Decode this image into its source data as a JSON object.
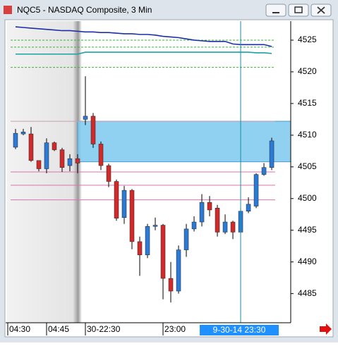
{
  "chart_data": {
    "type": "candlestick",
    "title": "NQC5 - NASDAQ Composite, 3 Min",
    "open": [
      4508.1,
      4510.2,
      4510.2,
      4506,
      4504.7,
      4508.8,
      4507.7,
      4505.2,
      4506.3,
      4512.5,
      4513,
      4508.6,
      4505.2,
      4502.7,
      4497,
      4501.3,
      4493.2,
      4491.1,
      4495.6,
      4495.8,
      4487.4,
      4485.4,
      4491.9,
      4495.2,
      4496.3,
      4499.4,
      4498.5,
      4494.7,
      4496.3,
      4494.7,
      4498.0,
      4498.8,
      4503.8,
      4504.9
    ],
    "high": [
      4511,
      4511,
      4511.3,
      4506,
      4509.5,
      4509,
      4508,
      4507,
      4507,
      4519.3,
      4513.5,
      4509,
      4505.5,
      4503,
      4502,
      4501.5,
      4494,
      4496,
      4497,
      4496,
      4490,
      4492.6,
      4496,
      4497.2,
      4500.7,
      4500.4,
      4499,
      4497.5,
      4496.5,
      4498.5,
      4500.2,
      4504,
      4505.6,
      4509.6
    ],
    "low": [
      4507.8,
      4510,
      4505.8,
      4504.3,
      4504,
      4507.5,
      4504.2,
      4504.3,
      4504,
      4511.6,
      4508,
      4504.5,
      4501.8,
      4496.5,
      4496,
      4492,
      4487.8,
      4490.6,
      4495,
      4484.1,
      4483.6,
      4485,
      4490.8,
      4494.8,
      4495.6,
      4497.2,
      4494,
      4494.4,
      4493.6,
      4494.5,
      4497.7,
      4498.5,
      4503.6,
      4504.5
    ],
    "close": [
      4510.3,
      4510.5,
      4506.0,
      4504.7,
      4508.8,
      4507.7,
      4504.9,
      4506.3,
      4505.6,
      4513,
      4508.6,
      4505.2,
      4502.7,
      4496.9,
      4501.3,
      4493.2,
      4491.1,
      4495.6,
      4495.8,
      4487.4,
      4485.4,
      4491.9,
      4495.2,
      4496.3,
      4499.4,
      4498.2,
      4494.7,
      4496.3,
      4494.7,
      4498.0,
      4499.1,
      4503.8,
      4504.9,
      4509.1
    ],
    "up_color": "#2a7ad6",
    "down_color": "#d22a2a",
    "lines": [
      {
        "color": "#1c2fa8",
        "values": [
          4527.1,
          4527.0,
          4526.9,
          4526.8,
          4526.7,
          4526.6,
          4526.5,
          4526.5,
          4526.4,
          4526.3,
          4526.3,
          4526.2,
          4526.2,
          4526.1,
          4526.0,
          4526.0,
          4525.9,
          4525.9,
          4525.8,
          4525.6,
          4525.5,
          4525.4,
          4525.2,
          4525.0,
          4524.9,
          4524.8,
          4524.8,
          4524.8,
          4524.4,
          4524.3,
          4524.3,
          4524.3,
          4524.3,
          4524.0
        ]
      },
      {
        "color": "#1aa3a3",
        "values": [
          4522.8,
          4522.8,
          4522.8,
          4522.8,
          4522.8,
          4522.8,
          4522.8,
          4522.8,
          4522.8,
          4523.1,
          4523.1,
          4523.1,
          4523.1,
          4523.1,
          4523.1,
          4523.1,
          4523.1,
          4523.1,
          4523.1,
          4523.1,
          4523.1,
          4523.1,
          4523.1,
          4523.1,
          4523.1,
          4523.1,
          4523.1,
          4523.1,
          4523.1,
          4523.1,
          4523.1,
          4523.0,
          4523.0,
          4522.9
        ]
      }
    ],
    "ref_lines": [
      {
        "value": 4525.0,
        "color": "#3cb43c",
        "dash": true
      },
      {
        "value": 4523.9,
        "color": "#3cb43c",
        "dash": true
      },
      {
        "value": 4520.7,
        "color": "#3cb43c",
        "dash": true
      },
      {
        "value": 4512.2,
        "color": "#c8a0b4",
        "dash": false
      },
      {
        "value": 4504.2,
        "color": "#e070b0",
        "dash": false
      },
      {
        "value": 4502.1,
        "color": "#e070b0",
        "dash": false
      },
      {
        "value": 4499.8,
        "color": "#e070b0",
        "dash": false
      }
    ],
    "zone": {
      "from": 4505.8,
      "to": 4512.2,
      "x_from": 8,
      "color": "#7cc8ee"
    },
    "crosshair": {
      "x": 29,
      "label": "9-30-14 23:30",
      "color": "#1a8fa0"
    },
    "xlim": [
      -1.09,
      35.45
    ],
    "xticks": [
      {
        "value": -1,
        "label": "04:30"
      },
      {
        "value": 4,
        "label": "04:45"
      },
      {
        "value": 9,
        "label": "30-22:30"
      },
      {
        "value": 19,
        "label": "23:00"
      }
    ],
    "ylim": [
      4480.4,
      4528
    ],
    "yticks": [
      4485,
      4490,
      4495,
      4500,
      4505,
      4510,
      4515,
      4520,
      4525
    ]
  }
}
